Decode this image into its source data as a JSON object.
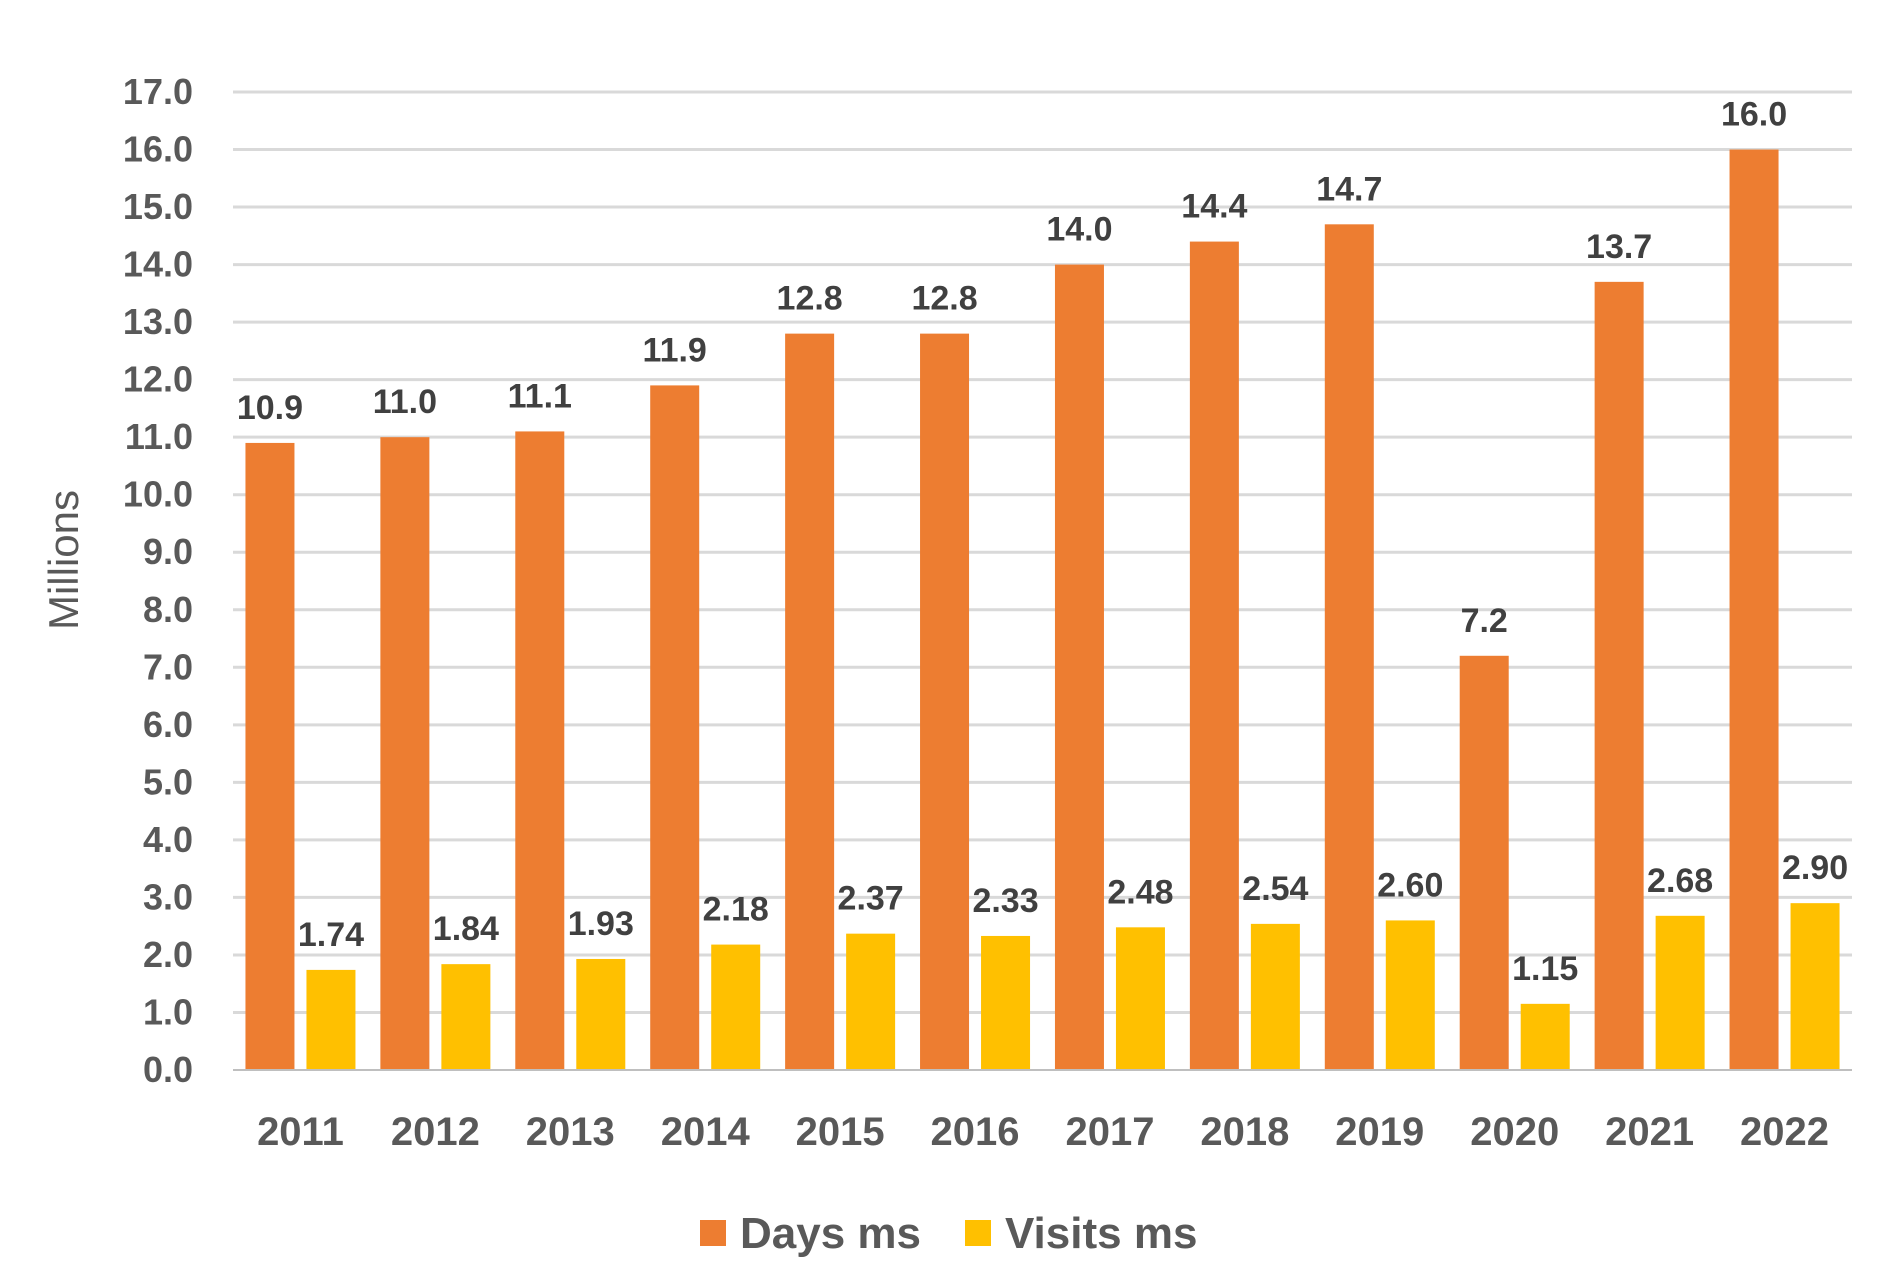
{
  "chart_data": {
    "type": "bar",
    "title": "",
    "xlabel": "",
    "ylabel": "Millions",
    "ylim": [
      0,
      17
    ],
    "yticks": [
      "0.0",
      "1.0",
      "2.0",
      "3.0",
      "4.0",
      "5.0",
      "6.0",
      "7.0",
      "8.0",
      "9.0",
      "10.0",
      "11.0",
      "12.0",
      "13.0",
      "14.0",
      "15.0",
      "16.0",
      "17.0"
    ],
    "categories": [
      "2011",
      "2012",
      "2013",
      "2014",
      "2015",
      "2016",
      "2017",
      "2018",
      "2019",
      "2020",
      "2021",
      "2022"
    ],
    "series": [
      {
        "name": "Days ms",
        "color": "#ED7D31",
        "values": [
          10.9,
          11.0,
          11.1,
          11.9,
          12.8,
          12.8,
          14.0,
          14.4,
          14.7,
          7.2,
          13.7,
          16.0
        ],
        "labels": [
          "10.9",
          "11.0",
          "11.1",
          "11.9",
          "12.8",
          "12.8",
          "14.0",
          "14.4",
          "14.7",
          "7.2",
          "13.7",
          "16.0"
        ]
      },
      {
        "name": "Visits ms",
        "color": "#FFC000",
        "values": [
          1.74,
          1.84,
          1.93,
          2.18,
          2.37,
          2.33,
          2.48,
          2.54,
          2.6,
          1.15,
          2.68,
          2.9
        ],
        "labels": [
          "1.74",
          "1.84",
          "1.93",
          "2.18",
          "2.37",
          "2.33",
          "2.48",
          "2.54",
          "2.60",
          "1.15",
          "2.68",
          "2.90"
        ]
      }
    ],
    "grid": true,
    "gridline_color": "#D9D9D9",
    "legend_position": "bottom"
  }
}
